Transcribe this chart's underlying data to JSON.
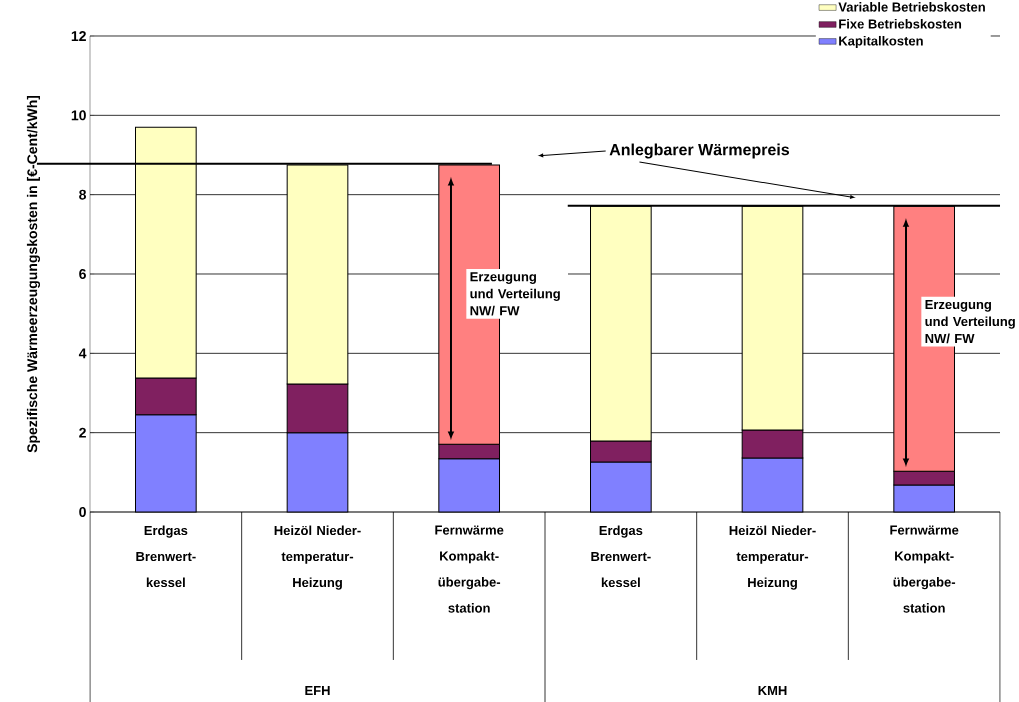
{
  "chart_data": {
    "type": "bar",
    "stacked": true,
    "ylabel": "Spezifische Wärmeerzeugungskosten in [€-Cent/kWh]",
    "categories": [
      "Erdgas Brenwert-kessel",
      "Heizöl Nieder-temperatur-Heizung",
      "Fernwärme Kompakt-übergabe-station",
      "Erdgas Brenwert-kessel",
      "Heizöl Nieder-temperatur-Heizung",
      "Fernwärme Kompakt-übergabe-station"
    ],
    "series": [
      {
        "name": "Kapitalkosten",
        "color": "#8080ff",
        "values": [
          2.45,
          2.0,
          1.34,
          1.26,
          1.36,
          0.68
        ]
      },
      {
        "name": "Fixe Betriebskosten",
        "color": "#802060",
        "values": [
          0.93,
          1.23,
          0.37,
          0.53,
          0.71,
          0.35
        ]
      },
      {
        "name": "Variable Betriebskosten",
        "color": "#ffffc0",
        "colors": [
          "#ffffc0",
          "#ffffc0",
          "#ff8080",
          "#ffffc0",
          "#ffffc0",
          "#ff8080"
        ],
        "values": [
          6.32,
          5.52,
          7.04,
          5.92,
          5.64,
          6.68
        ]
      }
    ],
    "ylim": [
      0,
      12
    ],
    "yticks": [
      0,
      2,
      4,
      6,
      8,
      10,
      12
    ],
    "grid": "y",
    "legend": "top right",
    "ref_lines": [
      {
        "axis": "y",
        "value": 8.78,
        "color": "#000000"
      },
      {
        "axis": "y",
        "value": 7.72,
        "color": "#000000"
      }
    ],
    "annotations": [
      "Anlegbarer Wärmepreis",
      "Erzeugung und Verteilung NW/ FW",
      "Erzeugung und Verteilung NW/ FW",
      "EFH",
      "KMH"
    ]
  }
}
